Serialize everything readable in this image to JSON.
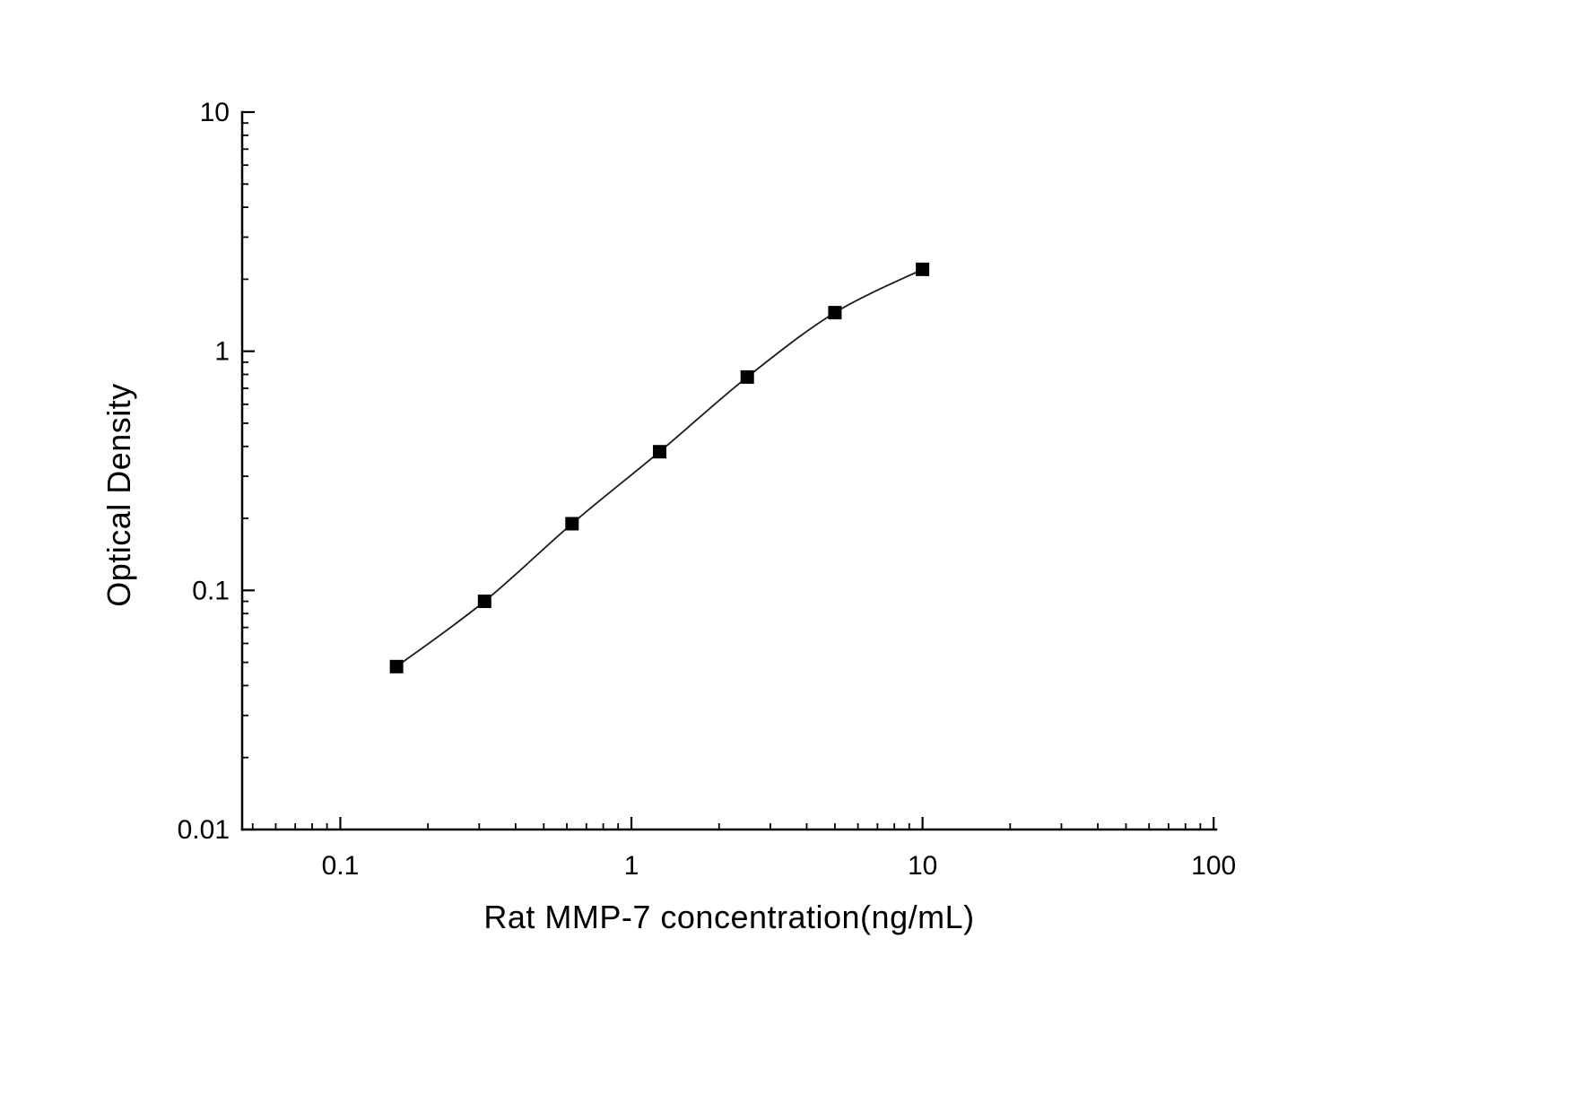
{
  "chart_data": {
    "type": "scatter",
    "title": "",
    "xlabel": "Rat MMP-7 concentration(ng/mL)",
    "ylabel": "Optical Density",
    "x_scale": "log",
    "y_scale": "log",
    "xlim": [
      0.046,
      102
    ],
    "ylim": [
      0.01,
      10
    ],
    "x_ticks": [
      0.1,
      1,
      10,
      100
    ],
    "x_tick_labels": [
      "0.1",
      "1",
      "10",
      "100"
    ],
    "y_ticks": [
      0.01,
      0.1,
      1,
      10
    ],
    "y_tick_labels": [
      "0.01",
      "0.1",
      "1",
      "10"
    ],
    "grid": false,
    "legend": false,
    "marker": "square",
    "colors": {
      "axis": "#000000",
      "marker": "#000000",
      "line": "#1a1a1a",
      "background": "#ffffff"
    },
    "x": [
      0.156,
      0.313,
      0.625,
      1.25,
      2.5,
      5,
      10
    ],
    "y": [
      0.048,
      0.09,
      0.19,
      0.38,
      0.78,
      1.45,
      2.2
    ]
  }
}
